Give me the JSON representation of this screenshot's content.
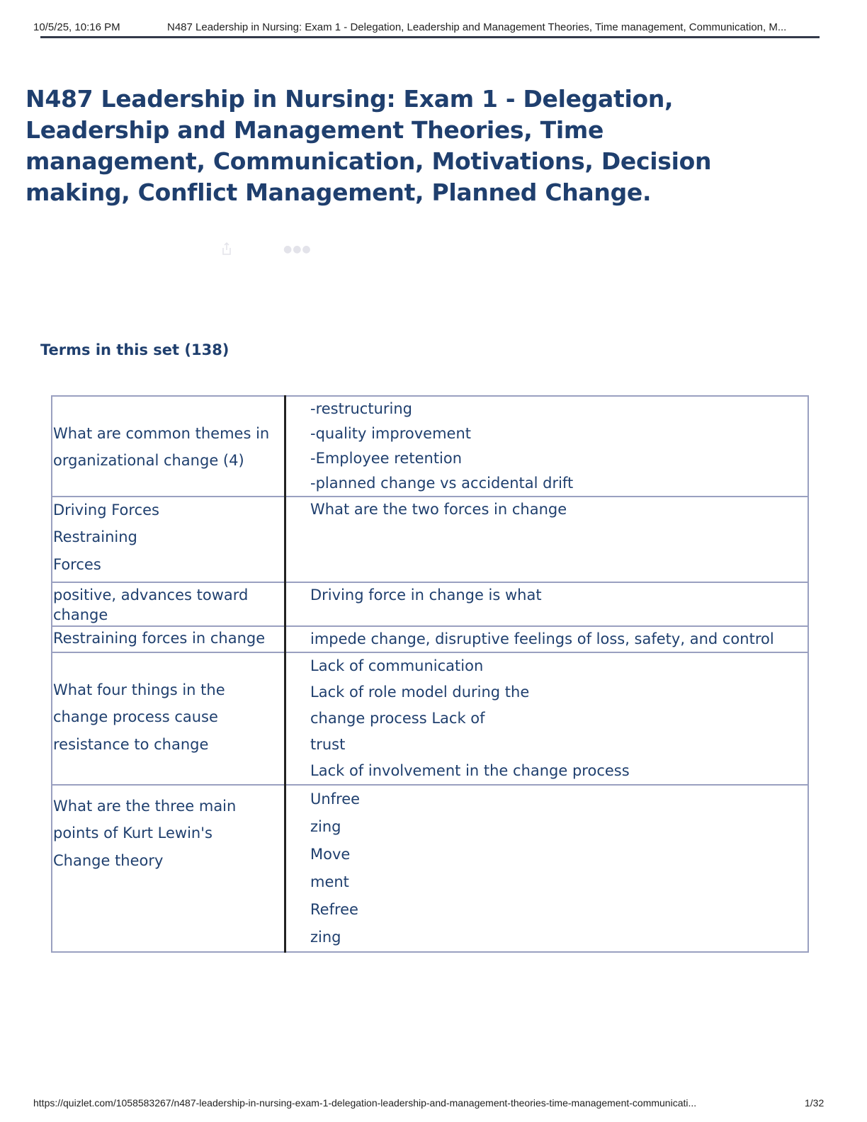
{
  "header": {
    "datetime": "10/5/25, 10:16 PM",
    "title": "N487 Leadership in Nursing: Exam 1 - Delegation, Leadership and Management Theories, Time management, Communication, M..."
  },
  "title": "N487 Leadership in Nursing: Exam 1 - Delegation, Leadership and Management Theories, Time management, Communication, Motivations, Decision making, Conflict Management,  Planned  Change.",
  "icons": {
    "share": "share-icon",
    "more": "more-icon"
  },
  "terms_heading": "Terms in this set (138)",
  "rows": [
    {
      "term": [
        "What are common themes in",
        "organizational change (4)"
      ],
      "definition": [
        "-restructuring",
        "-quality improvement",
        "-Employee retention",
        "-planned change vs accidental drift"
      ]
    },
    {
      "term": [
        "Driving Forces",
        "Restraining",
        "Forces"
      ],
      "definition": [
        "What are the two forces in change"
      ]
    },
    {
      "term": [
        "positive, advances toward",
        "change"
      ],
      "definition": [
        "Driving force in change is what"
      ]
    },
    {
      "term": [
        "Restraining forces in change"
      ],
      "definition": [
        "impede change, disruptive feelings of loss, safety, and control"
      ]
    },
    {
      "term": [
        "What four things in the",
        "change process cause",
        "resistance to change"
      ],
      "definition": [
        "Lack of communication",
        "Lack of role model during the",
        "change process Lack of",
        "trust",
        "Lack of involvement in the change process"
      ]
    },
    {
      "term": [
        "What are the three main",
        "points of Kurt Lewin's",
        "Change theory"
      ],
      "definition": [
        "Unfree",
        "zing",
        "Move",
        "ment",
        "Refree",
        "zing"
      ]
    }
  ],
  "footer": {
    "url": "https://quizlet.com/1058583267/n487-leadership-in-nursing-exam-1-delegation-leadership-and-management-theories-time-management-communicati...",
    "page": "1/32"
  },
  "colors": {
    "heading": "#1f3f6e",
    "table_border": "#9aa0c0"
  }
}
